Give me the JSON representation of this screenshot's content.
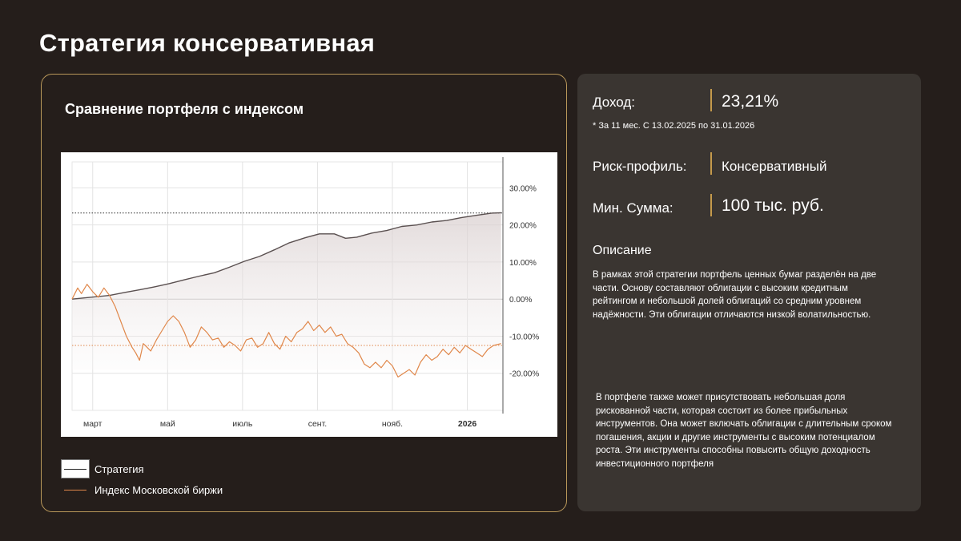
{
  "page": {
    "title": "Стратегия консервативная"
  },
  "chart_card": {
    "heading": "Сравнение портфеля с индексом"
  },
  "chart_data": {
    "type": "line",
    "y_ticks": [
      "30.00%",
      "20.00%",
      "10.00%",
      "0.00%",
      "-10.00%",
      "-20.00%"
    ],
    "y_tick_values": [
      30,
      20,
      10,
      0,
      -10,
      -20
    ],
    "ylim": [
      -30,
      37
    ],
    "x_tick_labels": [
      "март",
      "май",
      "июль",
      "сент.",
      "нояб.",
      "2026"
    ],
    "x_tick_months": [
      0.55,
      2.55,
      4.55,
      6.55,
      8.55,
      10.55
    ],
    "xlim": [
      0,
      11.5
    ],
    "reference_lines": [
      23.21,
      -12.5
    ],
    "grid": true,
    "legend_position": "bottom-left",
    "series": [
      {
        "name": "Стратегия",
        "color": "#5a5050",
        "fill": true,
        "x": [
          0,
          0.3,
          0.6,
          1.0,
          1.4,
          1.8,
          2.2,
          2.6,
          3.0,
          3.4,
          3.8,
          4.2,
          4.6,
          5.0,
          5.4,
          5.8,
          6.2,
          6.6,
          7.0,
          7.3,
          7.6,
          8.0,
          8.4,
          8.8,
          9.2,
          9.6,
          10.0,
          10.4,
          10.8,
          11.2,
          11.45
        ],
        "y": [
          0,
          0.3,
          0.6,
          1.0,
          1.8,
          2.5,
          3.3,
          4.2,
          5.2,
          6.2,
          7.1,
          8.6,
          10.2,
          11.5,
          13.3,
          15.2,
          16.5,
          17.6,
          17.6,
          16.4,
          16.7,
          17.8,
          18.5,
          19.6,
          20.0,
          20.8,
          21.2,
          22.0,
          22.6,
          23.2,
          23.3
        ]
      },
      {
        "name": "Индекс Московской биржи",
        "color": "#e0874a",
        "fill": false,
        "x": [
          0,
          0.15,
          0.25,
          0.4,
          0.55,
          0.7,
          0.85,
          1.0,
          1.15,
          1.3,
          1.45,
          1.6,
          1.7,
          1.8,
          1.9,
          2.0,
          2.1,
          2.25,
          2.4,
          2.55,
          2.7,
          2.85,
          3.0,
          3.15,
          3.3,
          3.45,
          3.6,
          3.75,
          3.9,
          4.05,
          4.2,
          4.35,
          4.5,
          4.65,
          4.8,
          4.95,
          5.1,
          5.25,
          5.4,
          5.55,
          5.7,
          5.85,
          6.0,
          6.15,
          6.3,
          6.45,
          6.6,
          6.75,
          6.9,
          7.05,
          7.2,
          7.35,
          7.5,
          7.65,
          7.8,
          7.95,
          8.1,
          8.25,
          8.4,
          8.55,
          8.7,
          8.85,
          9.0,
          9.15,
          9.3,
          9.45,
          9.6,
          9.75,
          9.9,
          10.05,
          10.2,
          10.35,
          10.5,
          10.65,
          10.8,
          10.95,
          11.1,
          11.25,
          11.45
        ],
        "y": [
          0,
          3,
          1.5,
          4,
          2,
          0.5,
          3,
          1,
          -2,
          -6,
          -10,
          -13,
          -14.5,
          -16.5,
          -12,
          -13,
          -14,
          -11,
          -8.5,
          -6,
          -4.5,
          -6,
          -9,
          -13,
          -11,
          -7.5,
          -9,
          -11,
          -10.5,
          -13,
          -11.5,
          -12.5,
          -14,
          -11,
          -10.5,
          -13,
          -12,
          -9,
          -12,
          -13.5,
          -10,
          -11.5,
          -9,
          -8,
          -6,
          -8.5,
          -7,
          -9,
          -7.5,
          -10,
          -9.5,
          -12,
          -13,
          -14.5,
          -17.5,
          -18.5,
          -17,
          -18.5,
          -16.5,
          -18,
          -21,
          -20,
          -19,
          -20.5,
          -17,
          -15,
          -16.5,
          -15.5,
          -13.5,
          -15,
          -13,
          -14.5,
          -12.5,
          -13.5,
          -14.5,
          -15.5,
          -13.5,
          -12.5,
          -12
        ]
      }
    ]
  },
  "legend": {
    "items": [
      {
        "label": "Стратегия"
      },
      {
        "label": "Индекс Московской биржи"
      }
    ]
  },
  "info": {
    "income_label": "Доход:",
    "income_value": "23,21%",
    "income_note": "* За 11 мес. С 13.02.2025 по 31.01.2026",
    "risk_label": "Риск-профиль:",
    "risk_value": "Консервативный",
    "min_sum_label": "Мин. Сумма:",
    "min_sum_value": "100 тыс. руб.",
    "description_heading": "Описание",
    "description_p1": "В рамках этой стратегии портфель ценных бумаг разделён на две части. Основу составляют облигации с высоким кредитным рейтингом и небольшой долей облигаций со средним уровнем надёжности. Эти облигации отличаются низкой волатильностью.",
    "description_p2": "В портфеле также может присутствовать небольшая доля рискованной части, которая состоит из более прибыльных инструментов. Она может включать облигации с длительным сроком погашения, акции и другие инструменты с высоким потенциалом роста. Эти инструменты способны повысить общую доходность инвестиционного портфеля",
    "accent_color": "#c59a4b"
  }
}
